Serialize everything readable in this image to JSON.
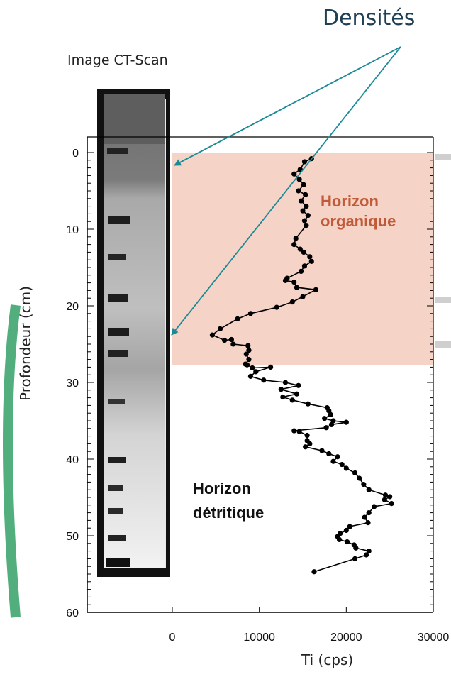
{
  "annotation": {
    "label": "Densités"
  },
  "ct_image": {
    "label": "Image CT-Scan"
  },
  "zones": {
    "organic_line1": "Horizon",
    "organic_line2": "organique",
    "organic_color": "#f5d3c6",
    "organic_text_color": "#c05a38",
    "detrital_line1": "Horizon",
    "detrital_line2": "détritique"
  },
  "colors": {
    "arrow": "#1a8a96",
    "series": "#000000",
    "background": "#ffffff"
  },
  "chart_data": {
    "type": "line",
    "title": "",
    "xlabel": "Ti (cps)",
    "ylabel": "Profondeur (cm)",
    "xlim": [
      0,
      30000
    ],
    "ylim": [
      60,
      0
    ],
    "y_inverted": true,
    "xticks": [
      "0",
      "10000",
      "20000",
      "30000"
    ],
    "yticks": [
      "0",
      "10",
      "20",
      "30",
      "40",
      "50",
      "60"
    ],
    "shaded_zone": {
      "label": "Horizon organique",
      "depth_range": [
        0,
        27.7
      ],
      "x_range": [
        0,
        30000
      ]
    },
    "series": [
      {
        "x": [
          16000,
          15200,
          14700,
          14000,
          14600,
          15100,
          14500,
          15300,
          14800,
          15400,
          15000,
          15600,
          15200,
          15400,
          14200,
          14000,
          14700,
          15100,
          15800,
          16000,
          15200,
          14800,
          13200,
          13000,
          14000,
          14300,
          16500,
          15000,
          13800,
          12000,
          9000,
          7500,
          5500,
          4600,
          6000,
          6800,
          7000,
          8700,
          8800,
          8500,
          8800,
          8400,
          8600,
          9200,
          11300,
          9600,
          9000,
          10500,
          13000,
          14500,
          12500,
          14300,
          12700,
          13800,
          15600,
          17800,
          18000,
          18200,
          17500,
          18500,
          20000,
          18300,
          17700,
          14000,
          14600,
          15500,
          15500,
          15800,
          15300,
          17200,
          18000,
          19000,
          18500,
          19500,
          20000,
          21000,
          21500,
          22000,
          22600,
          24500,
          25000,
          24400,
          25200,
          23200,
          22600,
          22100,
          22500,
          20400,
          20000,
          19300,
          19000,
          19200,
          20100,
          20900,
          21100,
          22600,
          22300,
          21000,
          16300
        ],
        "y": [
          0.8,
          1.2,
          2.2,
          2.8,
          3.5,
          4.2,
          5.0,
          5.5,
          6.3,
          7.0,
          7.6,
          8.2,
          8.9,
          9.5,
          11.2,
          12.0,
          12.6,
          13.0,
          13.6,
          14.2,
          14.8,
          15.5,
          16.4,
          16.7,
          16.9,
          17.6,
          17.9,
          18.8,
          19.5,
          20.2,
          21.0,
          21.7,
          23.0,
          23.8,
          24.5,
          24.4,
          25.0,
          25.2,
          25.8,
          26.3,
          27.0,
          27.6,
          27.7,
          28.1,
          28.0,
          28.6,
          29.2,
          29.7,
          30.0,
          30.4,
          30.9,
          31.5,
          31.9,
          32.3,
          32.8,
          33.3,
          33.7,
          34.2,
          34.7,
          35.0,
          35.2,
          35.5,
          35.9,
          36.3,
          36.4,
          36.9,
          37.6,
          38.0,
          38.4,
          38.9,
          39.3,
          39.7,
          40.3,
          40.7,
          41.2,
          41.8,
          42.5,
          43.3,
          44.0,
          44.7,
          44.9,
          45.3,
          45.8,
          46.2,
          47.0,
          47.6,
          48.3,
          48.8,
          49.3,
          49.7,
          50.1,
          50.5,
          50.8,
          51.2,
          51.6,
          52.0,
          52.5,
          53.0,
          54.7
        ]
      }
    ]
  }
}
